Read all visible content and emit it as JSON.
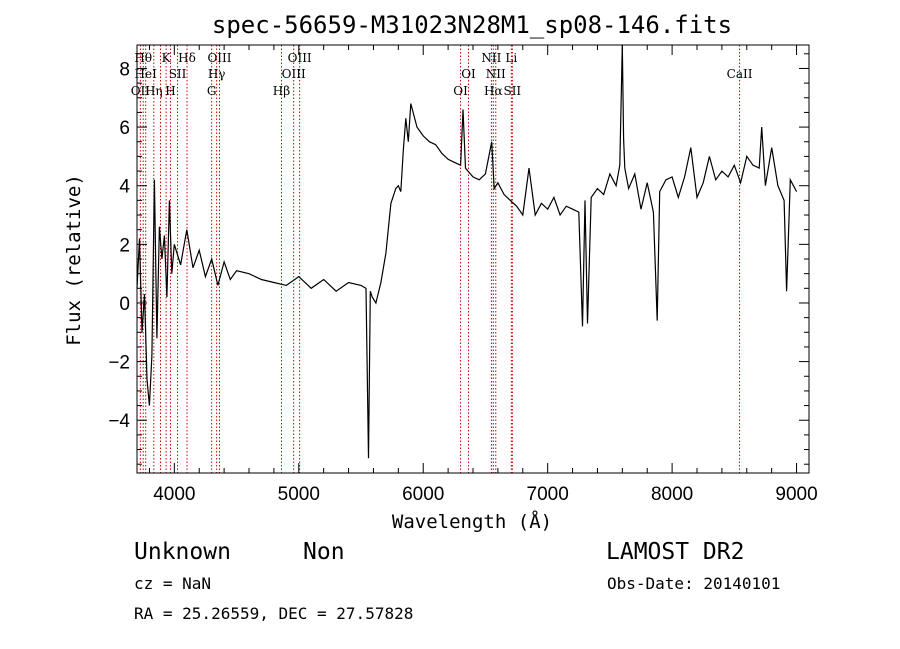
{
  "chart_data": {
    "type": "line",
    "title": "spec-56659-M31023N28M1_sp08-146.fits",
    "xlabel": "Wavelength (Å)",
    "ylabel": "Flux (relative)",
    "xlim": [
      3700,
      9100
    ],
    "ylim": [
      -5.8,
      8.8
    ],
    "x_ticks": [
      4000,
      5000,
      6000,
      7000,
      8000,
      9000
    ],
    "y_ticks": [
      -4,
      -2,
      0,
      2,
      4,
      6,
      8
    ],
    "x_tick_labels": [
      "4000",
      "5000",
      "6000",
      "7000",
      "8000",
      "9000"
    ],
    "y_tick_labels": [
      "−4",
      "−2",
      "0",
      "2",
      "4",
      "6",
      "8"
    ],
    "grid": false,
    "line_color": "#000000",
    "marker_color": "#cc0000",
    "series": [
      {
        "x": [
          3700,
          3720,
          3740,
          3760,
          3780,
          3800,
          3820,
          3840,
          3860,
          3880,
          3900,
          3920,
          3940,
          3960,
          3980,
          4000,
          4050,
          4100,
          4150,
          4200,
          4250,
          4300,
          4350,
          4400,
          4450,
          4500,
          4600,
          4700,
          4800,
          4900,
          5000,
          5100,
          5200,
          5300,
          5400,
          5500,
          5540,
          5560,
          5575,
          5590,
          5620,
          5660,
          5700,
          5740,
          5780,
          5800,
          5820,
          5840,
          5860,
          5880,
          5900,
          5950,
          6000,
          6050,
          6100,
          6150,
          6200,
          6250,
          6300,
          6320,
          6340,
          6360,
          6400,
          6450,
          6500,
          6550,
          6570,
          6600,
          6650,
          6700,
          6750,
          6800,
          6850,
          6900,
          6950,
          7000,
          7050,
          7100,
          7150,
          7200,
          7250,
          7280,
          7300,
          7320,
          7350,
          7400,
          7450,
          7500,
          7550,
          7580,
          7600,
          7610,
          7620,
          7650,
          7700,
          7750,
          7800,
          7850,
          7880,
          7900,
          7950,
          8000,
          8050,
          8100,
          8150,
          8200,
          8250,
          8300,
          8350,
          8400,
          8450,
          8500,
          8550,
          8600,
          8650,
          8700,
          8720,
          8750,
          8800,
          8850,
          8900,
          8920,
          8950,
          9000
        ],
        "y": [
          0.5,
          2.2,
          -1.0,
          0.3,
          -2.6,
          -3.5,
          -1.8,
          4.2,
          -1.2,
          2.6,
          1.5,
          2.3,
          0.2,
          3.5,
          1.0,
          2.0,
          1.3,
          2.5,
          1.2,
          1.8,
          0.9,
          1.5,
          0.6,
          1.4,
          0.8,
          1.1,
          1.0,
          0.8,
          0.7,
          0.6,
          0.9,
          0.5,
          0.8,
          0.4,
          0.7,
          0.6,
          0.5,
          -5.3,
          0.4,
          0.2,
          0.0,
          0.7,
          1.7,
          3.4,
          3.9,
          4.0,
          3.8,
          5.2,
          6.3,
          5.5,
          6.8,
          6.0,
          5.7,
          5.5,
          5.4,
          5.1,
          4.9,
          4.8,
          4.7,
          6.6,
          4.6,
          4.5,
          4.3,
          4.2,
          4.4,
          5.5,
          3.9,
          4.1,
          3.7,
          3.5,
          3.3,
          3.0,
          4.6,
          3.0,
          3.4,
          3.2,
          3.6,
          3.0,
          3.3,
          3.2,
          3.1,
          -0.8,
          3.5,
          -0.7,
          3.6,
          3.9,
          3.7,
          4.4,
          4.0,
          4.7,
          9.2,
          5.6,
          4.6,
          3.9,
          4.4,
          3.2,
          4.1,
          3.1,
          -0.6,
          3.8,
          4.2,
          4.3,
          3.6,
          4.3,
          5.3,
          3.6,
          4.1,
          5.0,
          4.2,
          4.5,
          4.3,
          4.7,
          4.1,
          5.0,
          4.7,
          4.6,
          6.0,
          4.0,
          5.3,
          4.0,
          3.5,
          0.4,
          4.2,
          3.8
        ]
      }
    ],
    "line_markers": [
      {
        "x": 3727,
        "label": "OII",
        "row": 3
      },
      {
        "x": 3750,
        "label": "Hθ",
        "row": 1
      },
      {
        "x": 3770,
        "label": "HeI",
        "row": 2
      },
      {
        "x": 3835,
        "label": "Hη",
        "row": 3
      },
      {
        "x": 3889,
        "label": "",
        "row": 0
      },
      {
        "x": 3934,
        "label": "K",
        "row": 1
      },
      {
        "x": 3969,
        "label": "H",
        "row": 3
      },
      {
        "x": 4026,
        "label": "SII",
        "row": 2
      },
      {
        "x": 4102,
        "label": "Hδ",
        "row": 1
      },
      {
        "x": 4300,
        "label": "G",
        "row": 3
      },
      {
        "x": 4340,
        "label": "Hγ",
        "row": 2
      },
      {
        "x": 4363,
        "label": "OIII",
        "row": 1
      },
      {
        "x": 4861,
        "label": "Hβ",
        "row": 3
      },
      {
        "x": 4959,
        "label": "OIII",
        "row": 2
      },
      {
        "x": 5007,
        "label": "OIII",
        "row": 1
      },
      {
        "x": 6300,
        "label": "OI",
        "row": 3
      },
      {
        "x": 6364,
        "label": "OI",
        "row": 2
      },
      {
        "x": 6548,
        "label": "NII",
        "row": 1
      },
      {
        "x": 6563,
        "label": "Hα",
        "row": 3
      },
      {
        "x": 6583,
        "label": "NII",
        "row": 2
      },
      {
        "x": 6708,
        "label": "Li",
        "row": 1
      },
      {
        "x": 6716,
        "label": "SII",
        "row": 3
      },
      {
        "x": 8542,
        "label": "CaII",
        "row": 2
      }
    ]
  },
  "info": {
    "object_class": "Unknown",
    "object_subclass": "Non",
    "survey": "LAMOST DR2",
    "cz": "cz = NaN",
    "obs_date": "Obs-Date: 20140101",
    "coords": "RA =  25.26559, DEC =  27.57828"
  }
}
